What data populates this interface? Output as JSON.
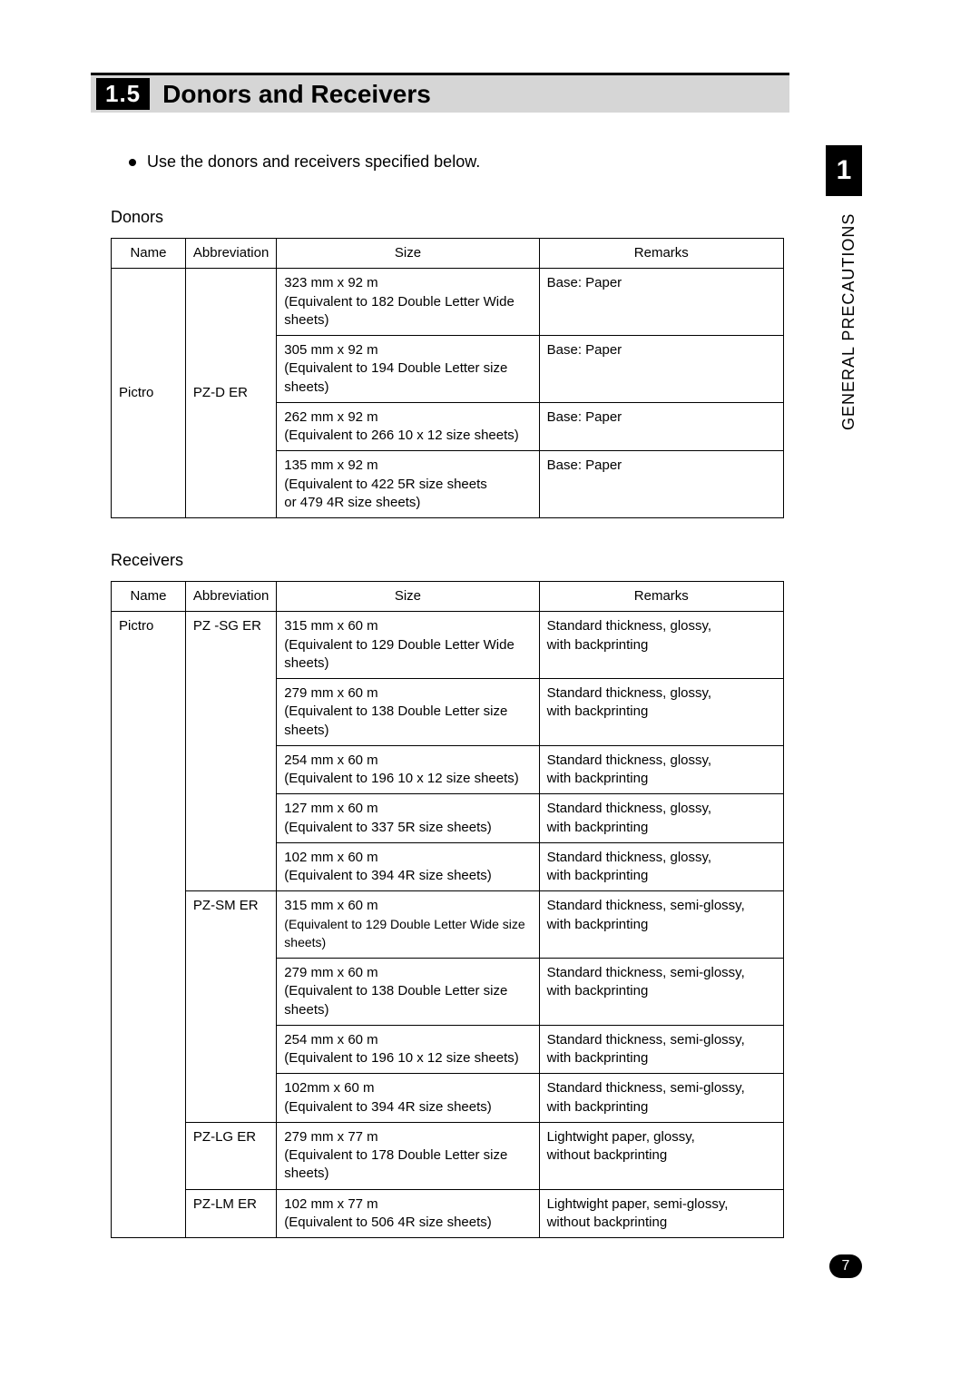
{
  "section": {
    "number": "1.5",
    "title": "Donors and Receivers"
  },
  "bullet": "Use the donors and receivers specified below.",
  "sideTab": "1",
  "sideLabel": "GENERAL PRECAUTIONS",
  "pageNumber": "7",
  "donors": {
    "heading": "Donors",
    "headers": {
      "name": "Name",
      "abbr": "Abbreviation",
      "size": "Size",
      "remarks": "Remarks"
    },
    "name": "Pictro",
    "abbr": "PZ-D ER",
    "rows": [
      {
        "size1": "323 mm x 92 m",
        "size2": "(Equivalent to 182 Double Letter Wide sheets)",
        "remarks": "Base:  Paper"
      },
      {
        "size1": "305 mm x 92 m",
        "size2": "(Equivalent to 194 Double Letter size sheets)",
        "remarks": "Base:  Paper"
      },
      {
        "size1": "262 mm x 92 m",
        "size2": "(Equivalent to 266 10 x 12 size sheets)",
        "remarks": "Base:  Paper"
      },
      {
        "size1": "135 mm x 92 m",
        "size2": "(Equivalent to 422 5R size sheets",
        "size3": "or 479 4R size sheets)",
        "remarks": "Base:  Paper"
      }
    ]
  },
  "receivers": {
    "heading": "Receivers",
    "headers": {
      "name": "Name",
      "abbr": "Abbreviation",
      "size": "Size",
      "remarks": "Remarks"
    },
    "name": "Pictro",
    "groups": [
      {
        "abbr": "PZ -SG ER",
        "rows": [
          {
            "size1": "315 mm x 60 m",
            "size2": "(Equivalent to 129 Double Letter Wide sheets)",
            "remarks1": "Standard thickness, glossy,",
            "remarks2": "with backprinting"
          },
          {
            "size1": "279 mm x 60 m",
            "size2": "(Equivalent to 138 Double Letter size sheets)",
            "remarks1": "Standard thickness, glossy,",
            "remarks2": "with backprinting"
          },
          {
            "size1": "254 mm x 60 m",
            "size2": "(Equivalent to 196 10 x 12 size sheets)",
            "remarks1": "Standard thickness, glossy,",
            "remarks2": "with backprinting"
          },
          {
            "size1": "127 mm x 60 m",
            "size2": "(Equivalent to 337 5R size sheets)",
            "remarks1": "Standard thickness, glossy,",
            "remarks2": "with backprinting"
          },
          {
            "size1": "102 mm x 60 m",
            "size2": "(Equivalent to 394 4R size sheets)",
            "remarks1": "Standard thickness, glossy,",
            "remarks2": "with backprinting"
          }
        ]
      },
      {
        "abbr": "PZ-SM ER",
        "rows": [
          {
            "size1": "315 mm x 60 m",
            "size2": "(Equivalent to 129 Double Letter Wide size sheets)",
            "remarks1": "Standard thickness, semi-glossy,",
            "remarks2": "with backprinting"
          },
          {
            "size1": "279 mm x 60 m",
            "size2": "(Equivalent to 138 Double Letter size sheets)",
            "remarks1": "Standard thickness, semi-glossy,",
            "remarks2": "with backprinting"
          },
          {
            "size1": "254 mm x 60 m",
            "size2": "(Equivalent to 196 10 x 12 size sheets)",
            "remarks1": "Standard thickness, semi-glossy,",
            "remarks2": "with backprinting"
          },
          {
            "size1": "102mm x 60 m",
            "size2": "(Equivalent to 394 4R size sheets)",
            "remarks1": "Standard thickness, semi-glossy,",
            "remarks2": "with backprinting"
          }
        ]
      },
      {
        "abbr": "PZ-LG ER",
        "rows": [
          {
            "size1": "279 mm x 77 m",
            "size2": "(Equivalent to 178 Double Letter size sheets)",
            "remarks1": "Lightwight paper, glossy,",
            "remarks2": "without backprinting"
          }
        ]
      },
      {
        "abbr": "PZ-LM ER",
        "rows": [
          {
            "size1": "102 mm x 77 m",
            "size2": "(Equivalent to 506 4R size sheets)",
            "remarks1": "Lightwight paper, semi-glossy,",
            "remarks2": "without backprinting"
          }
        ]
      }
    ]
  }
}
